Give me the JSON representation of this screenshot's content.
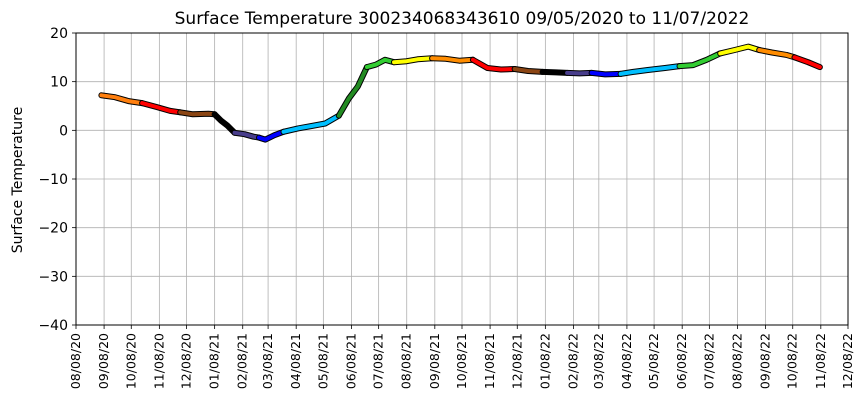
{
  "chart_data": {
    "type": "line",
    "title": "Surface Temperature 300234068343610  09/05/2020 to 11/07/2022",
    "xlabel": "",
    "ylabel": "Surface Temperature",
    "xlim": [
      "2020-08-08",
      "2022-12-08"
    ],
    "ylim": [
      -40,
      20
    ],
    "grid": true,
    "xticks": [
      "08/08/20",
      "09/08/20",
      "10/08/20",
      "11/08/20",
      "12/08/20",
      "01/08/21",
      "02/08/21",
      "03/08/21",
      "04/08/21",
      "05/08/21",
      "06/08/21",
      "07/08/21",
      "08/08/21",
      "09/08/21",
      "10/08/21",
      "11/08/21",
      "12/08/21",
      "01/08/22",
      "02/08/22",
      "03/08/22",
      "04/08/22",
      "05/08/22",
      "06/08/22",
      "07/08/22",
      "08/08/22",
      "09/08/22",
      "10/08/22",
      "11/08/22",
      "12/08/22"
    ],
    "yticks": [
      20,
      10,
      0,
      -10,
      -20,
      -30,
      -40
    ],
    "series": [
      {
        "color": "#ff7f0e",
        "x": [
          "2020-09-05",
          "2020-09-20",
          "2020-10-05",
          "2020-10-20"
        ],
        "y": [
          7.2,
          6.8,
          6.0,
          5.6
        ]
      },
      {
        "color": "#ff0000",
        "x": [
          "2020-10-20",
          "2020-11-05",
          "2020-11-20",
          "2020-12-01"
        ],
        "y": [
          5.6,
          4.8,
          4.0,
          3.7
        ]
      },
      {
        "color": "#8b4513",
        "x": [
          "2020-12-01",
          "2020-12-15",
          "2021-01-01",
          "2021-01-08"
        ],
        "y": [
          3.7,
          3.3,
          3.4,
          3.3
        ]
      },
      {
        "color": "#000000",
        "x": [
          "2021-01-08",
          "2021-01-15",
          "2021-01-22",
          "2021-01-30"
        ],
        "y": [
          3.3,
          2.0,
          1.0,
          -0.5
        ]
      },
      {
        "color": "#483d8b",
        "x": [
          "2021-01-30",
          "2021-02-10",
          "2021-02-20",
          "2021-02-26"
        ],
        "y": [
          -0.5,
          -0.8,
          -1.3,
          -1.5
        ]
      },
      {
        "color": "#0000ff",
        "x": [
          "2021-02-26",
          "2021-03-05",
          "2021-03-15",
          "2021-03-25"
        ],
        "y": [
          -1.5,
          -1.9,
          -1.0,
          -0.3
        ]
      },
      {
        "color": "#00bfff",
        "x": [
          "2021-03-25",
          "2021-04-10",
          "2021-04-25",
          "2021-05-10",
          "2021-05-25"
        ],
        "y": [
          -0.3,
          0.4,
          0.9,
          1.4,
          3.0
        ]
      },
      {
        "color": "#228b22",
        "x": [
          "2021-05-25",
          "2021-06-05",
          "2021-06-15",
          "2021-06-25"
        ],
        "y": [
          3.0,
          6.5,
          9.0,
          13.0
        ]
      },
      {
        "color": "#32cd32",
        "x": [
          "2021-06-25",
          "2021-07-05",
          "2021-07-15",
          "2021-07-25"
        ],
        "y": [
          13.0,
          13.5,
          14.5,
          14.0
        ]
      },
      {
        "color": "#ffff00",
        "x": [
          "2021-07-25",
          "2021-08-08",
          "2021-08-20",
          "2021-09-05"
        ],
        "y": [
          14.0,
          14.2,
          14.6,
          14.8
        ]
      },
      {
        "color": "#ff8c00",
        "x": [
          "2021-09-05",
          "2021-09-20",
          "2021-10-05",
          "2021-10-20"
        ],
        "y": [
          14.8,
          14.7,
          14.3,
          14.5
        ]
      },
      {
        "color": "#ff0000",
        "x": [
          "2021-10-20",
          "2021-11-05",
          "2021-11-20",
          "2021-12-05"
        ],
        "y": [
          14.5,
          12.8,
          12.5,
          12.6
        ]
      },
      {
        "color": "#8b4513",
        "x": [
          "2021-12-05",
          "2021-12-20",
          "2022-01-05"
        ],
        "y": [
          12.6,
          12.2,
          12.0
        ]
      },
      {
        "color": "#000000",
        "x": [
          "2022-01-05",
          "2022-01-20",
          "2022-02-01"
        ],
        "y": [
          12.0,
          11.9,
          11.8
        ]
      },
      {
        "color": "#483d8b",
        "x": [
          "2022-02-01",
          "2022-02-15",
          "2022-02-28"
        ],
        "y": [
          11.8,
          11.7,
          11.8
        ]
      },
      {
        "color": "#0000ff",
        "x": [
          "2022-02-28",
          "2022-03-15",
          "2022-04-01"
        ],
        "y": [
          11.8,
          11.5,
          11.6
        ]
      },
      {
        "color": "#00bfff",
        "x": [
          "2022-04-01",
          "2022-04-15",
          "2022-05-01",
          "2022-05-20",
          "2022-06-05"
        ],
        "y": [
          11.6,
          12.0,
          12.4,
          12.8,
          13.2
        ]
      },
      {
        "color": "#32cd32",
        "x": [
          "2022-06-05",
          "2022-06-20",
          "2022-07-05",
          "2022-07-20"
        ],
        "y": [
          13.2,
          13.4,
          14.5,
          15.8
        ]
      },
      {
        "color": "#ffff00",
        "x": [
          "2022-07-20",
          "2022-08-05",
          "2022-08-20",
          "2022-09-01"
        ],
        "y": [
          15.8,
          16.5,
          17.2,
          16.5
        ]
      },
      {
        "color": "#ff8c00",
        "x": [
          "2022-09-01",
          "2022-09-15",
          "2022-10-01",
          "2022-10-10"
        ],
        "y": [
          16.5,
          16.0,
          15.5,
          15.0
        ]
      },
      {
        "color": "#ff0000",
        "x": [
          "2022-10-10",
          "2022-10-25",
          "2022-11-07"
        ],
        "y": [
          15.0,
          14.0,
          13.0
        ]
      }
    ]
  }
}
